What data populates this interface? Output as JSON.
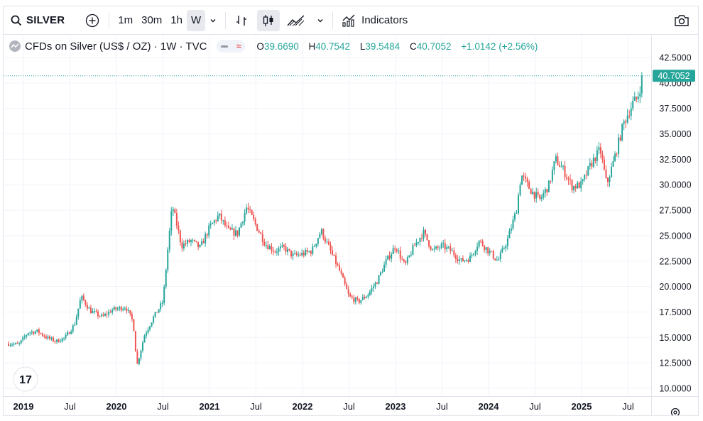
{
  "toolbar": {
    "symbol": "SILVER",
    "intervals": [
      "1m",
      "30m",
      "1h",
      "W"
    ],
    "active_interval": "W",
    "indicators_label": "Indicators"
  },
  "legend": {
    "title": "CFDs on Silver (US$ / OZ) · 1W · TVC",
    "open_label": "O",
    "open": "39.6690",
    "high_label": "H",
    "high": "40.7542",
    "low_label": "L",
    "low": "39.5484",
    "close_label": "C",
    "close": "40.7052",
    "change": "+1.0142 (+2.56%)"
  },
  "colors": {
    "up": "#26a69a",
    "down": "#ef5350",
    "grid": "#f0f3fa",
    "axis_text": "#131722"
  },
  "chart_data": {
    "type": "candlestick",
    "price_axis_labels": [
      "42.5000",
      "40.0000",
      "37.5000",
      "35.0000",
      "32.5000",
      "30.0000",
      "27.5000",
      "25.0000",
      "22.5000",
      "20.0000",
      "17.5000",
      "15.0000",
      "12.5000",
      "10.0000"
    ],
    "price_ticks": [
      42.5,
      40,
      37.5,
      35,
      32.5,
      30,
      27.5,
      25,
      22.5,
      20,
      17.5,
      15,
      12.5,
      10
    ],
    "time_axis_labels": [
      {
        "label": "2019",
        "year": 2019.0,
        "bold": true
      },
      {
        "label": "Jul",
        "year": 2019.5,
        "bold": false
      },
      {
        "label": "2020",
        "year": 2020.0,
        "bold": true
      },
      {
        "label": "Jul",
        "year": 2020.5,
        "bold": false
      },
      {
        "label": "2021",
        "year": 2021.0,
        "bold": true
      },
      {
        "label": "Jul",
        "year": 2021.5,
        "bold": false
      },
      {
        "label": "2022",
        "year": 2022.0,
        "bold": true
      },
      {
        "label": "Jul",
        "year": 2022.5,
        "bold": false
      },
      {
        "label": "2023",
        "year": 2023.0,
        "bold": true
      },
      {
        "label": "Jul",
        "year": 2023.5,
        "bold": false
      },
      {
        "label": "2024",
        "year": 2024.0,
        "bold": true
      },
      {
        "label": "Jul",
        "year": 2024.5,
        "bold": false
      },
      {
        "label": "2025",
        "year": 2025.0,
        "bold": true
      },
      {
        "label": "Jul",
        "year": 2025.5,
        "bold": false
      }
    ],
    "last_price": 40.7052,
    "last_price_label": "40.7052",
    "price_anchors": [
      [
        2018.84,
        14.4
      ],
      [
        2018.95,
        14.3
      ],
      [
        2019.05,
        15.5
      ],
      [
        2019.15,
        15.6
      ],
      [
        2019.25,
        15.0
      ],
      [
        2019.35,
        14.6
      ],
      [
        2019.45,
        15.0
      ],
      [
        2019.55,
        16.3
      ],
      [
        2019.62,
        19.0
      ],
      [
        2019.72,
        17.6
      ],
      [
        2019.85,
        17.0
      ],
      [
        2019.95,
        17.7
      ],
      [
        2020.1,
        18.0
      ],
      [
        2020.18,
        16.5
      ],
      [
        2020.22,
        12.2
      ],
      [
        2020.3,
        15.2
      ],
      [
        2020.4,
        17.0
      ],
      [
        2020.5,
        18.5
      ],
      [
        2020.55,
        23.5
      ],
      [
        2020.6,
        28.0
      ],
      [
        2020.7,
        24.0
      ],
      [
        2020.8,
        24.5
      ],
      [
        2020.9,
        23.8
      ],
      [
        2021.0,
        25.8
      ],
      [
        2021.1,
        27.0
      ],
      [
        2021.2,
        25.5
      ],
      [
        2021.3,
        25.2
      ],
      [
        2021.4,
        27.8
      ],
      [
        2021.5,
        26.0
      ],
      [
        2021.6,
        24.2
      ],
      [
        2021.7,
        23.5
      ],
      [
        2021.8,
        23.8
      ],
      [
        2021.9,
        23.0
      ],
      [
        2022.0,
        23.2
      ],
      [
        2022.1,
        23.5
      ],
      [
        2022.2,
        25.5
      ],
      [
        2022.3,
        23.5
      ],
      [
        2022.4,
        21.5
      ],
      [
        2022.5,
        19.0
      ],
      [
        2022.6,
        18.5
      ],
      [
        2022.7,
        19.2
      ],
      [
        2022.8,
        20.5
      ],
      [
        2022.9,
        22.5
      ],
      [
        2023.0,
        24.0
      ],
      [
        2023.1,
        22.0
      ],
      [
        2023.2,
        24.0
      ],
      [
        2023.3,
        25.3
      ],
      [
        2023.4,
        23.5
      ],
      [
        2023.5,
        24.0
      ],
      [
        2023.6,
        23.5
      ],
      [
        2023.7,
        22.5
      ],
      [
        2023.8,
        22.8
      ],
      [
        2023.9,
        24.5
      ],
      [
        2024.0,
        23.5
      ],
      [
        2024.1,
        22.5
      ],
      [
        2024.2,
        24.5
      ],
      [
        2024.3,
        27.5
      ],
      [
        2024.35,
        31.0
      ],
      [
        2024.45,
        29.5
      ],
      [
        2024.55,
        28.5
      ],
      [
        2024.65,
        30.0
      ],
      [
        2024.72,
        32.5
      ],
      [
        2024.8,
        31.5
      ],
      [
        2024.9,
        29.8
      ],
      [
        2025.0,
        30.0
      ],
      [
        2025.1,
        32.0
      ],
      [
        2025.2,
        33.5
      ],
      [
        2025.27,
        30.0
      ],
      [
        2025.35,
        32.5
      ],
      [
        2025.45,
        36.0
      ],
      [
        2025.55,
        38.0
      ],
      [
        2025.6,
        38.5
      ],
      [
        2025.66,
        40.7
      ]
    ]
  }
}
